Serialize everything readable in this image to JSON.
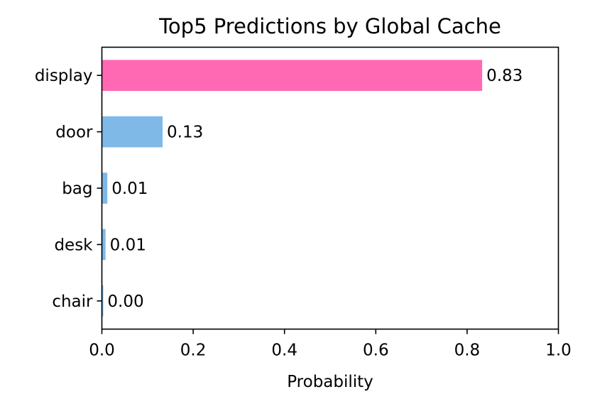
{
  "chart_data": {
    "type": "bar",
    "orientation": "horizontal",
    "title": "Top5 Predictions by Global Cache",
    "xlabel": "Probability",
    "ylabel": "",
    "categories": [
      "display",
      "door",
      "bag",
      "desk",
      "chair"
    ],
    "values": [
      0.833,
      0.133,
      0.012,
      0.008,
      0.003
    ],
    "value_labels": [
      "0.83",
      "0.13",
      "0.01",
      "0.01",
      "0.00"
    ],
    "bar_colors": [
      "#ff69b4",
      "#7eb9e8",
      "#7eb9e8",
      "#7eb9e8",
      "#7eb9e8"
    ],
    "xlim": [
      0,
      1.0
    ],
    "xticks": [
      0.0,
      0.2,
      0.4,
      0.6,
      0.8,
      1.0
    ],
    "xtick_labels": [
      "0.0",
      "0.2",
      "0.4",
      "0.6",
      "0.8",
      "1.0"
    ],
    "grid": false,
    "legend": "none"
  }
}
